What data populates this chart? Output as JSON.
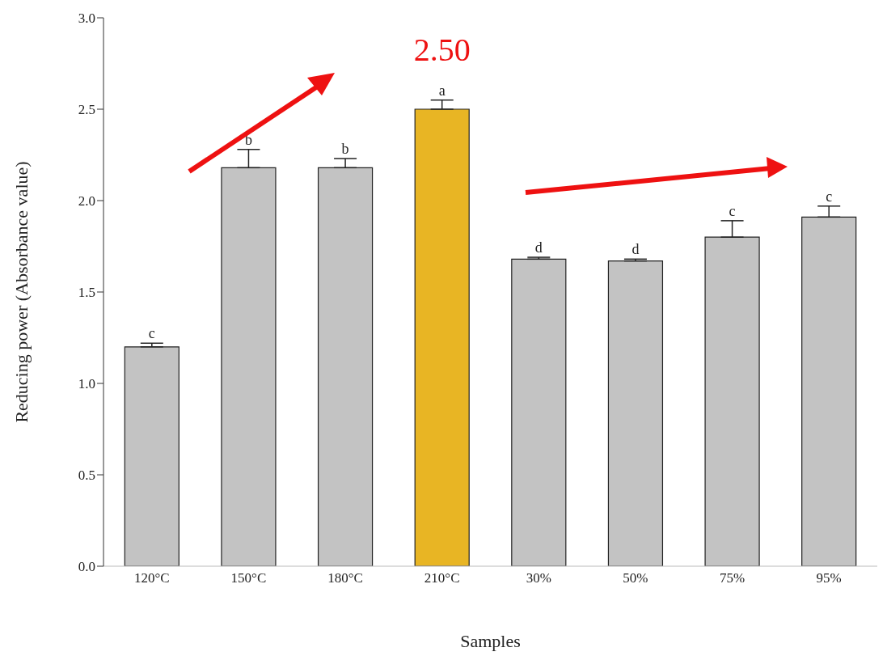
{
  "chart_data": {
    "type": "bar",
    "xlabel": "Samples",
    "ylabel": "Reducing power (Absorbance value)",
    "categories": [
      "120°C",
      "150°C",
      "180°C",
      "210°C",
      "30%",
      "50%",
      "75%",
      "95%"
    ],
    "values": [
      1.2,
      2.18,
      2.18,
      2.5,
      1.68,
      1.67,
      1.8,
      1.91
    ],
    "errors": [
      [
        1.2,
        1.22
      ],
      [
        2.18,
        2.28
      ],
      [
        2.18,
        2.23
      ],
      [
        2.5,
        2.55
      ],
      [
        1.68,
        1.69
      ],
      [
        1.67,
        1.68
      ],
      [
        1.8,
        1.89
      ],
      [
        1.91,
        1.97
      ]
    ],
    "colors": [
      "#c3c3c3",
      "#c3c3c3",
      "#c3c3c3",
      "#e8b524",
      "#c3c3c3",
      "#c3c3c3",
      "#c3c3c3",
      "#c3c3c3"
    ],
    "value_labels": [
      null,
      null,
      null,
      "2.50",
      null,
      null,
      null,
      null
    ],
    "ylim": [
      0,
      3
    ],
    "yticks": [
      {
        "value": 0,
        "label": "0.0"
      },
      0.5,
      {
        "value": 1,
        "label": "1.0"
      },
      1.5,
      {
        "value": 2,
        "label": "2.0"
      },
      2.5,
      {
        "value": 3,
        "label": "3.0"
      }
    ],
    "grid": false,
    "legend": false,
    "annotations": [
      {
        "text": "c",
        "x": "120°C",
        "y": 1.22
      },
      {
        "text": "b",
        "x": "150°C",
        "y": 2.28
      },
      {
        "text": "b",
        "x": "180°C",
        "y": 2.23
      },
      {
        "text": "a",
        "x": "210°C",
        "y": 2.55
      },
      {
        "text": "d",
        "x": "30%",
        "y": 1.69
      },
      {
        "text": "d",
        "x": "50%",
        "y": 1.68
      },
      {
        "text": "c",
        "x": "75%",
        "y": 1.89
      },
      {
        "text": "c",
        "x": "95%",
        "y": 1.97
      }
    ]
  }
}
